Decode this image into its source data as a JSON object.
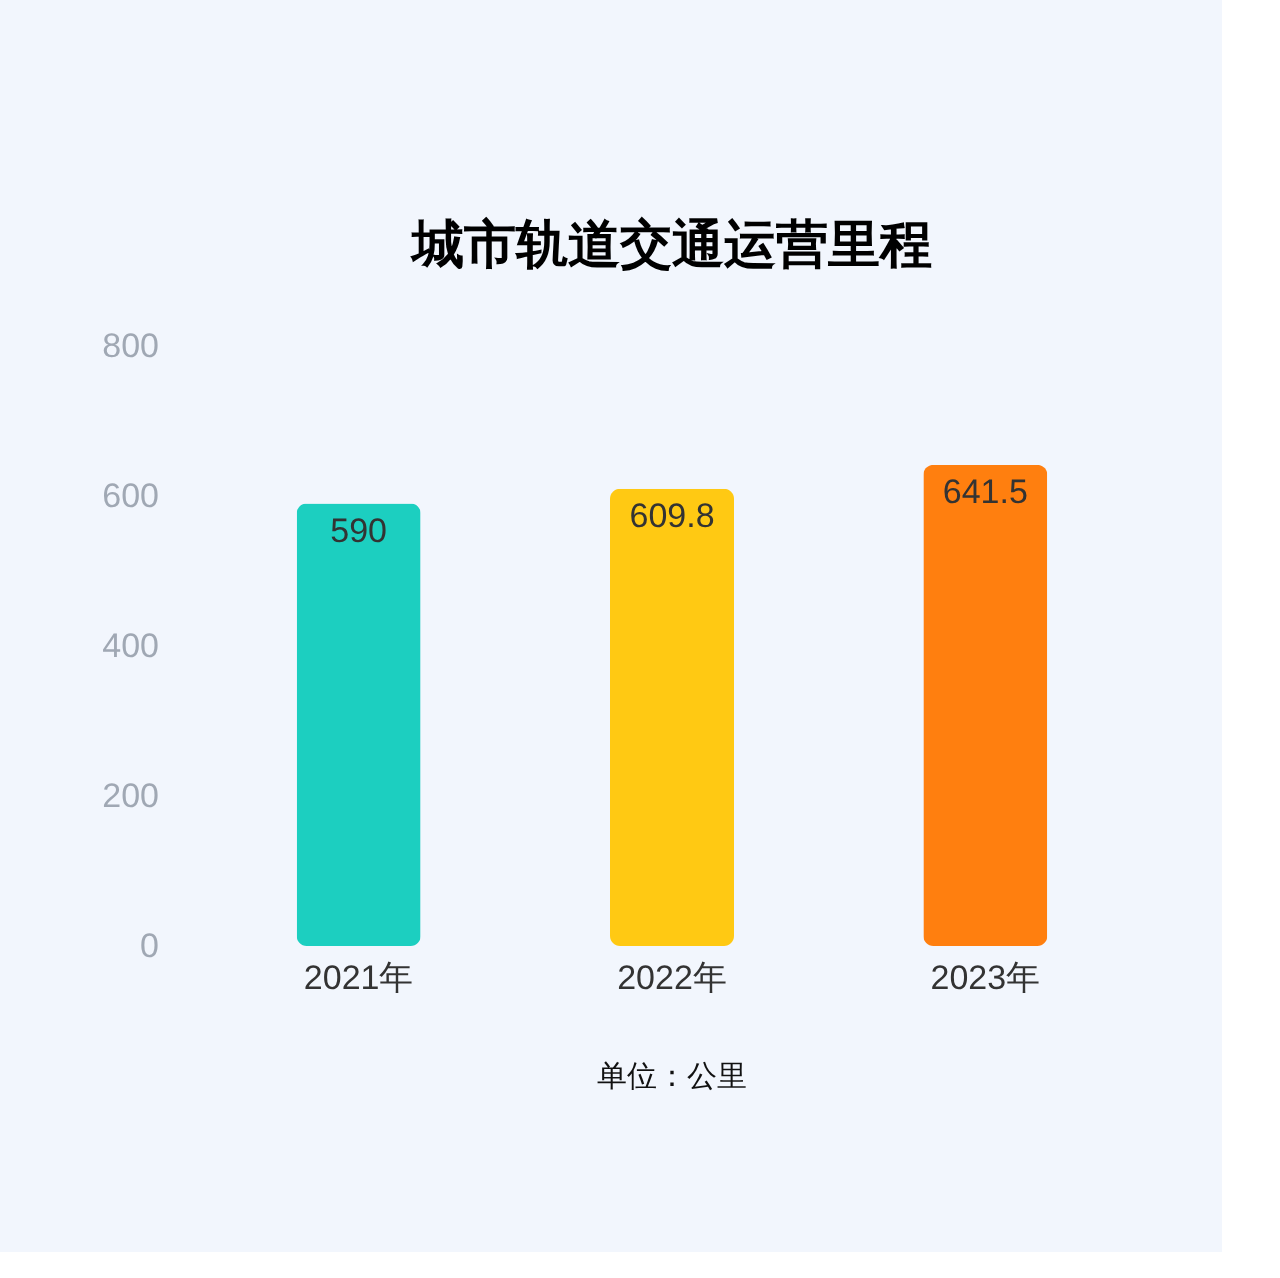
{
  "chart_data": {
    "type": "bar",
    "title": "城市轨道交通运营里程",
    "categories": [
      "2021年",
      "2022年",
      "2023年"
    ],
    "values": [
      590,
      609.8,
      641.5
    ],
    "colors": [
      "#1ccfc0",
      "#ffc913",
      "#ff7f0f"
    ],
    "ylim": [
      0,
      800
    ],
    "yticks": [
      0,
      200,
      400,
      600,
      800
    ],
    "grid": false,
    "data_labels": true,
    "annotations": [
      "单位：公里"
    ]
  }
}
